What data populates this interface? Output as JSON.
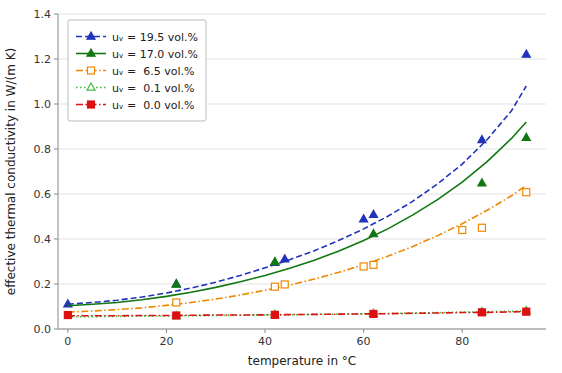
{
  "chart_data": {
    "type": "line",
    "xlabel": "temperature in °C",
    "ylabel": "effective thermal conductivity in W/(m K)",
    "xlim": [
      -2,
      97
    ],
    "ylim": [
      0.0,
      1.4
    ],
    "xticks": [
      0,
      20,
      40,
      60,
      80
    ],
    "yticks": [
      {
        "value": 0.0,
        "label": "0.0"
      },
      0.2,
      0.4,
      0.6,
      0.8,
      {
        "value": 1.0,
        "label": "1.0"
      },
      1.2,
      1.4
    ],
    "grid": true,
    "legend": "upper left",
    "series": [
      {
        "name": "uᵥ = 19.5 vol.%",
        "color": "#2233bb",
        "line_style": "dashed",
        "marker": "triangle",
        "x": [
          0,
          22,
          42,
          44,
          60,
          62,
          84,
          93
        ],
        "values": [
          0.11,
          0.2,
          0.295,
          0.31,
          0.488,
          0.508,
          0.84,
          1.22
        ],
        "curve_x": [
          0,
          5,
          10,
          15,
          20,
          25,
          30,
          35,
          40,
          45,
          50,
          55,
          60,
          65,
          70,
          75,
          80,
          85,
          90,
          93
        ],
        "curve_values": [
          0.11,
          0.118,
          0.128,
          0.142,
          0.16,
          0.182,
          0.208,
          0.238,
          0.272,
          0.308,
          0.348,
          0.394,
          0.445,
          0.502,
          0.568,
          0.645,
          0.733,
          0.84,
          0.97,
          1.08
        ]
      },
      {
        "name": "uᵥ = 17.0 vol.%",
        "color": "#117711",
        "line_style": "solid",
        "marker": "triangle",
        "x": [
          22,
          42,
          62,
          84,
          93
        ],
        "values": [
          0.198,
          0.298,
          0.422,
          0.648,
          0.85
        ],
        "curve_x": [
          0,
          5,
          10,
          15,
          20,
          25,
          30,
          35,
          40,
          45,
          50,
          55,
          60,
          65,
          70,
          75,
          80,
          85,
          90,
          93
        ],
        "curve_values": [
          0.103,
          0.11,
          0.118,
          0.13,
          0.145,
          0.163,
          0.185,
          0.21,
          0.238,
          0.27,
          0.306,
          0.347,
          0.393,
          0.446,
          0.507,
          0.575,
          0.653,
          0.743,
          0.847,
          0.92
        ]
      },
      {
        "name": "uᵥ =  6.5 vol.%",
        "color": "#ee8800",
        "line_style": "dashdot",
        "marker": "square-open",
        "x": [
          22,
          42,
          44,
          60,
          62,
          80,
          84,
          93
        ],
        "values": [
          0.118,
          0.188,
          0.198,
          0.278,
          0.285,
          0.44,
          0.45,
          0.608
        ],
        "curve_x": [
          0,
          5,
          10,
          15,
          20,
          25,
          30,
          35,
          40,
          45,
          50,
          55,
          60,
          65,
          70,
          75,
          80,
          85,
          90,
          93
        ],
        "curve_values": [
          0.075,
          0.08,
          0.086,
          0.094,
          0.105,
          0.118,
          0.133,
          0.151,
          0.172,
          0.195,
          0.222,
          0.252,
          0.286,
          0.324,
          0.367,
          0.415,
          0.468,
          0.527,
          0.592,
          0.638
        ]
      },
      {
        "name": "uᵥ =  0.1 vol.%",
        "color": "#44bb44",
        "line_style": "dotted",
        "marker": "triangle-open",
        "x": [
          22,
          42,
          62,
          84,
          93
        ],
        "values": [
          0.058,
          0.063,
          0.068,
          0.076,
          0.08
        ],
        "curve_x": [
          0,
          5,
          10,
          15,
          20,
          25,
          30,
          35,
          40,
          45,
          50,
          55,
          60,
          65,
          70,
          75,
          80,
          85,
          90,
          93
        ],
        "curve_values": [
          0.054,
          0.055,
          0.056,
          0.057,
          0.058,
          0.059,
          0.06,
          0.061,
          0.062,
          0.063,
          0.065,
          0.066,
          0.068,
          0.069,
          0.071,
          0.073,
          0.075,
          0.077,
          0.079,
          0.08
        ]
      },
      {
        "name": "uᵥ =  0.0 vol.%",
        "color": "#dd1111",
        "line_style": "dashdot",
        "marker": "square",
        "x": [
          0,
          22,
          42,
          62,
          84,
          93
        ],
        "values": [
          0.062,
          0.06,
          0.063,
          0.067,
          0.074,
          0.077
        ],
        "curve_x": [
          0,
          5,
          10,
          15,
          20,
          25,
          30,
          35,
          40,
          45,
          50,
          55,
          60,
          65,
          70,
          75,
          80,
          85,
          90,
          93
        ],
        "curve_values": [
          0.059,
          0.059,
          0.059,
          0.06,
          0.06,
          0.061,
          0.062,
          0.062,
          0.063,
          0.064,
          0.065,
          0.066,
          0.067,
          0.068,
          0.07,
          0.071,
          0.073,
          0.074,
          0.076,
          0.077
        ]
      }
    ]
  }
}
